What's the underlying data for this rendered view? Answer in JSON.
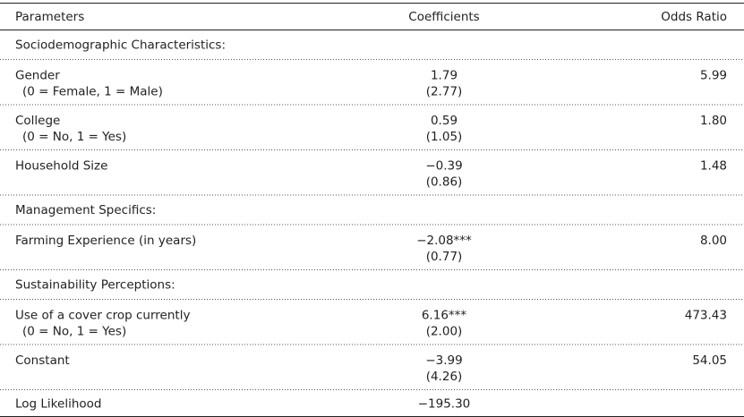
{
  "table": {
    "header": [
      "Parameters",
      "Coefficients",
      "Odds Ratio"
    ],
    "rows": [
      {
        "section": "Sociodemographic Characteristics:"
      },
      {
        "label": "Gender",
        "sublabel": "(0 = Female, 1 = Male)",
        "coefficient": "1.79",
        "se": "(2.77)",
        "odds_ratio": "5.99"
      },
      {
        "label": "College",
        "sublabel": "(0 = No, 1 = Yes)",
        "coefficient": "0.59",
        "se": "(1.05)",
        "odds_ratio": "1.80"
      },
      {
        "label": "Household Size",
        "coefficient": "−0.39",
        "se": "(0.86)",
        "odds_ratio": "1.48"
      },
      {
        "section": "Management Specifics:"
      },
      {
        "label": "Farming Experience (in years)",
        "coefficient": "−2.08***",
        "se": "(0.77)",
        "odds_ratio": "8.00"
      },
      {
        "section": "Sustainability Perceptions:"
      },
      {
        "label": "Use of a cover crop currently",
        "sublabel": "(0 = No, 1 = Yes)",
        "coefficient": "6.16***",
        "se": "(2.00)",
        "odds_ratio": "473.43"
      },
      {
        "label": "Constant",
        "coefficient": "−3.99",
        "se": "(4.26)",
        "odds_ratio": "54.05"
      },
      {
        "label": "Log Likelihood",
        "coefficient": "−195.30"
      }
    ]
  }
}
